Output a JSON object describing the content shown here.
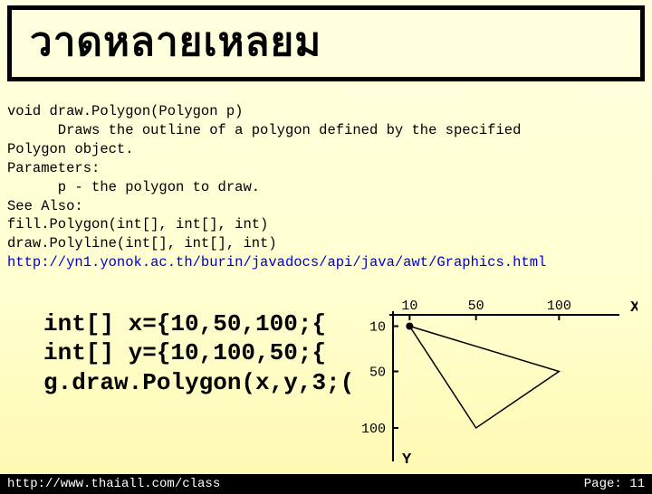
{
  "title": "วาดหลายเหลยม",
  "doc": {
    "l1": "void draw.Polygon(Polygon p)",
    "l2": "      Draws the outline of a polygon defined by the specified",
    "l3": "Polygon object.",
    "l4": "Parameters:",
    "l5": "      p - the polygon to draw.",
    "l6": "See Also:",
    "l7": "fill.Polygon(int[], int[], int)",
    "l8": "draw.Polyline(int[], int[], int)",
    "link": "http://yn1.yonok.ac.th/burin/javadocs/api/java/awt/Graphics.html",
    "link_color": "#0000cc"
  },
  "code": {
    "l1": "int[] x={10,50,100;{",
    "l2": "int[] y={10,100,50;{",
    "l3": "g.draw.Polygon(x,y,3;("
  },
  "chart": {
    "x_label": "X",
    "y_label": "Y",
    "x_ticks": [
      "10",
      "50",
      "100"
    ],
    "y_ticks": [
      "10",
      "50",
      "100"
    ],
    "tick_fontsize": 15,
    "triangle_points": [
      [
        10,
        10
      ],
      [
        50,
        100
      ],
      [
        100,
        50
      ]
    ],
    "axis_range_x": [
      0,
      120
    ],
    "axis_range_y": [
      0,
      120
    ],
    "axis_color": "#000000",
    "axis_width": 2,
    "shape_color": "#000000",
    "shape_width": 1.5,
    "dot_color": "#000000",
    "dot_radius": 4
  },
  "footer": {
    "left": "http://www.thaiall.com/class",
    "right": "Page: 11"
  },
  "colors": {
    "bg_top": "#ffffe0",
    "bg_bottom": "#fff8b0",
    "text": "#000000",
    "footer_bg": "#000000",
    "footer_text": "#ffffff"
  }
}
